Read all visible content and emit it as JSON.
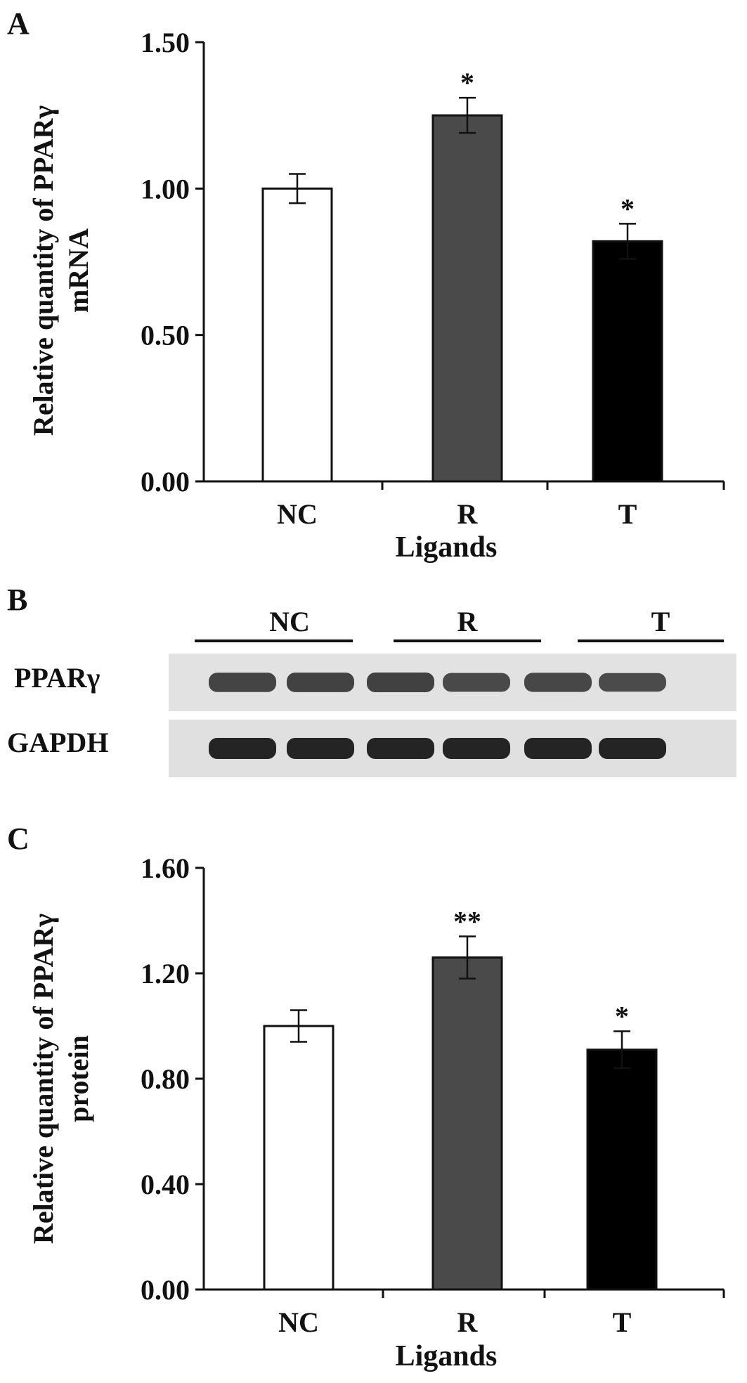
{
  "panels": {
    "a": "A",
    "b": "B",
    "c": "C"
  },
  "colors": {
    "NC": "#ffffff",
    "R": "#4a4a4a",
    "T": "#000000",
    "ink": "#111111"
  },
  "chart_data": [
    {
      "panel": "A",
      "type": "bar",
      "categories": [
        "NC",
        "R",
        "T"
      ],
      "values": [
        1.0,
        1.25,
        0.82
      ],
      "errors": [
        0.05,
        0.06,
        0.06
      ],
      "significance": [
        "",
        "*",
        "*"
      ],
      "ylabel_lines": [
        "Relative quantity of PPARγ",
        "mRNA"
      ],
      "xlabel": "Ligands",
      "ylim": [
        0,
        1.5
      ],
      "yticks": [
        0,
        0.5,
        1.0,
        1.5
      ],
      "ytick_labels": [
        "0.00",
        "0.50",
        "1.00",
        "1.50"
      ],
      "colors": [
        "#ffffff",
        "#4a4a4a",
        "#000000"
      ]
    },
    {
      "panel": "C",
      "type": "bar",
      "categories": [
        "NC",
        "R",
        "T"
      ],
      "values": [
        1.0,
        1.26,
        0.91
      ],
      "errors": [
        0.06,
        0.08,
        0.07
      ],
      "significance": [
        "",
        "**",
        "*"
      ],
      "ylabel_lines": [
        "Relative quantity of PPARγ",
        "protein"
      ],
      "xlabel": "Ligands",
      "ylim": [
        0,
        1.6
      ],
      "yticks": [
        0,
        0.4,
        0.8,
        1.2,
        1.6
      ],
      "ytick_labels": [
        "0.00",
        "0.40",
        "0.80",
        "1.20",
        "1.60"
      ],
      "colors": [
        "#ffffff",
        "#4a4a4a",
        "#000000"
      ]
    }
  ],
  "blot": {
    "groups": [
      "NC",
      "R",
      "T"
    ],
    "rows": [
      {
        "label": "PPARγ",
        "intensity": [
          0.75,
          0.78,
          0.8,
          0.68,
          0.72,
          0.65
        ]
      },
      {
        "label": "GAPDH",
        "intensity": [
          1.0,
          1.0,
          1.0,
          1.0,
          1.0,
          1.0
        ]
      }
    ]
  }
}
